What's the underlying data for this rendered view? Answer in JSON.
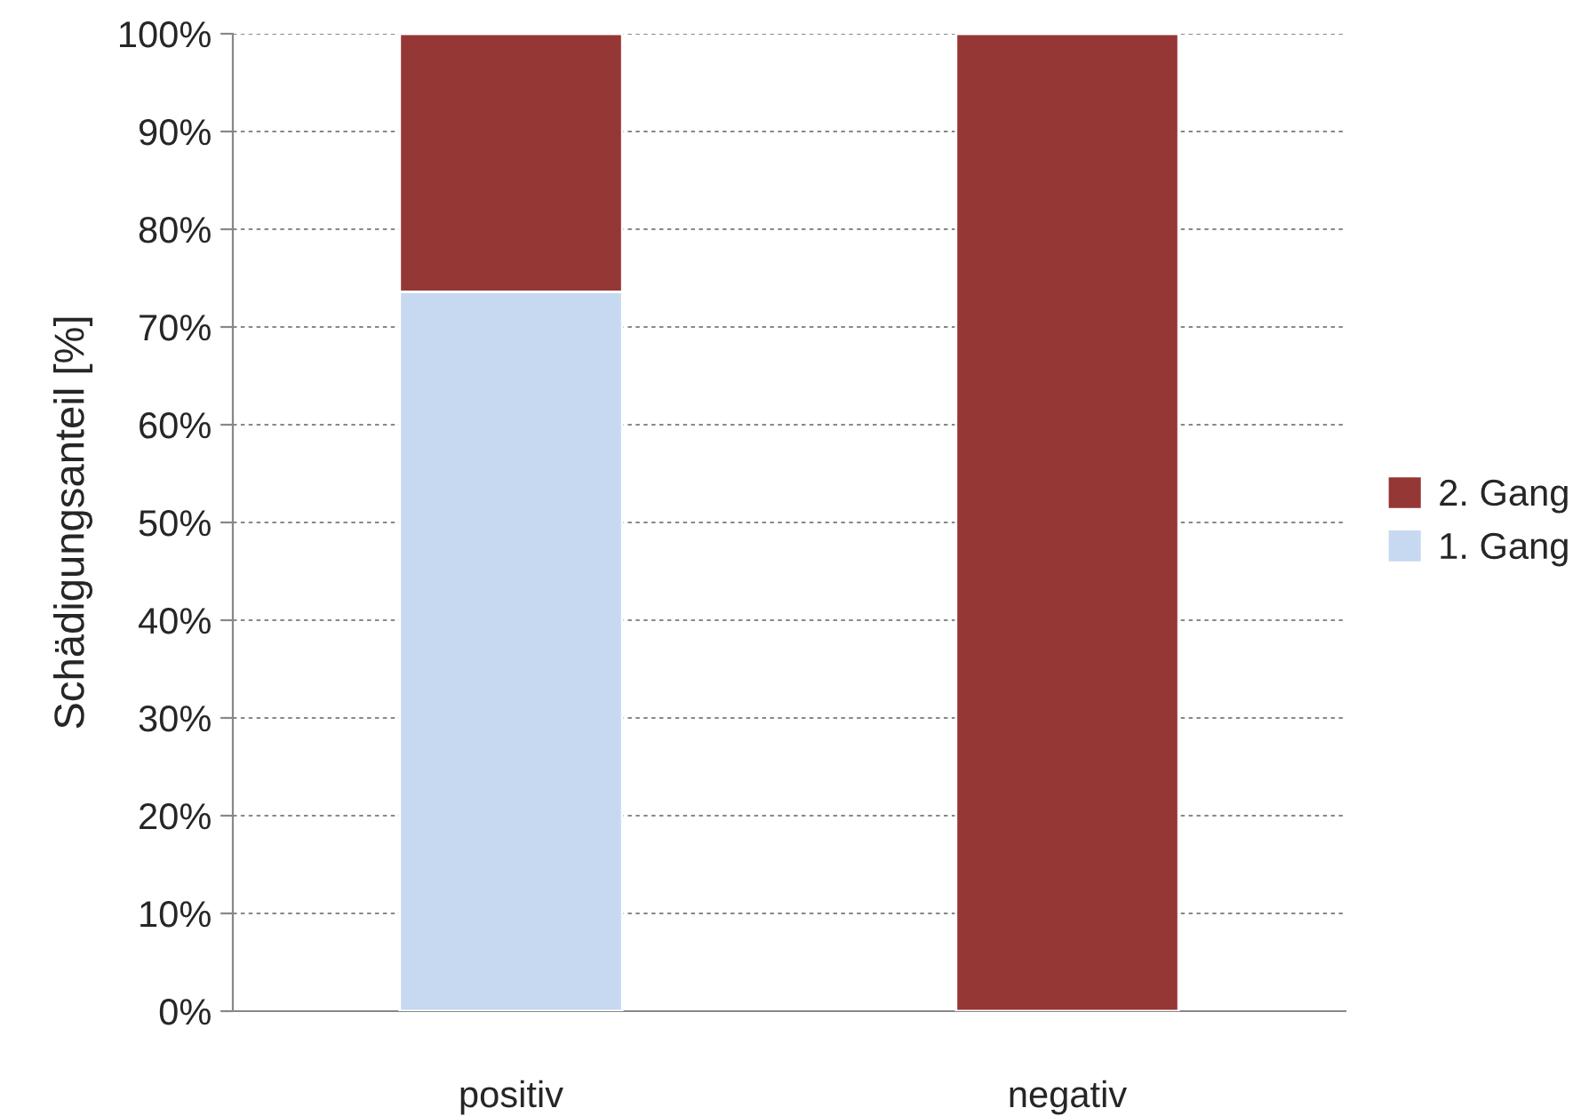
{
  "chart_data": {
    "type": "bar",
    "stacked": true,
    "ylabel": "Schädigungsanteil [%]",
    "categories": [
      "positiv",
      "negativ"
    ],
    "series": [
      {
        "name": "1. Gang",
        "color": "#c6d9f1",
        "values": [
          73.6,
          0
        ]
      },
      {
        "name": "2. Gang",
        "color": "#953735",
        "values": [
          26.4,
          100
        ]
      }
    ],
    "ylim": [
      0,
      100
    ],
    "yticks": [
      {
        "value": 0,
        "label": "0%"
      },
      {
        "value": 10,
        "label": "10%"
      },
      {
        "value": 20,
        "label": "20%"
      },
      {
        "value": 30,
        "label": "30%"
      },
      {
        "value": 40,
        "label": "40%"
      },
      {
        "value": 50,
        "label": "50%"
      },
      {
        "value": 60,
        "label": "60%"
      },
      {
        "value": 70,
        "label": "70%"
      },
      {
        "value": 80,
        "label": "80%"
      },
      {
        "value": 90,
        "label": "90%"
      },
      {
        "value": 100,
        "label": "100%"
      }
    ],
    "grid": "y",
    "legend": "right"
  }
}
